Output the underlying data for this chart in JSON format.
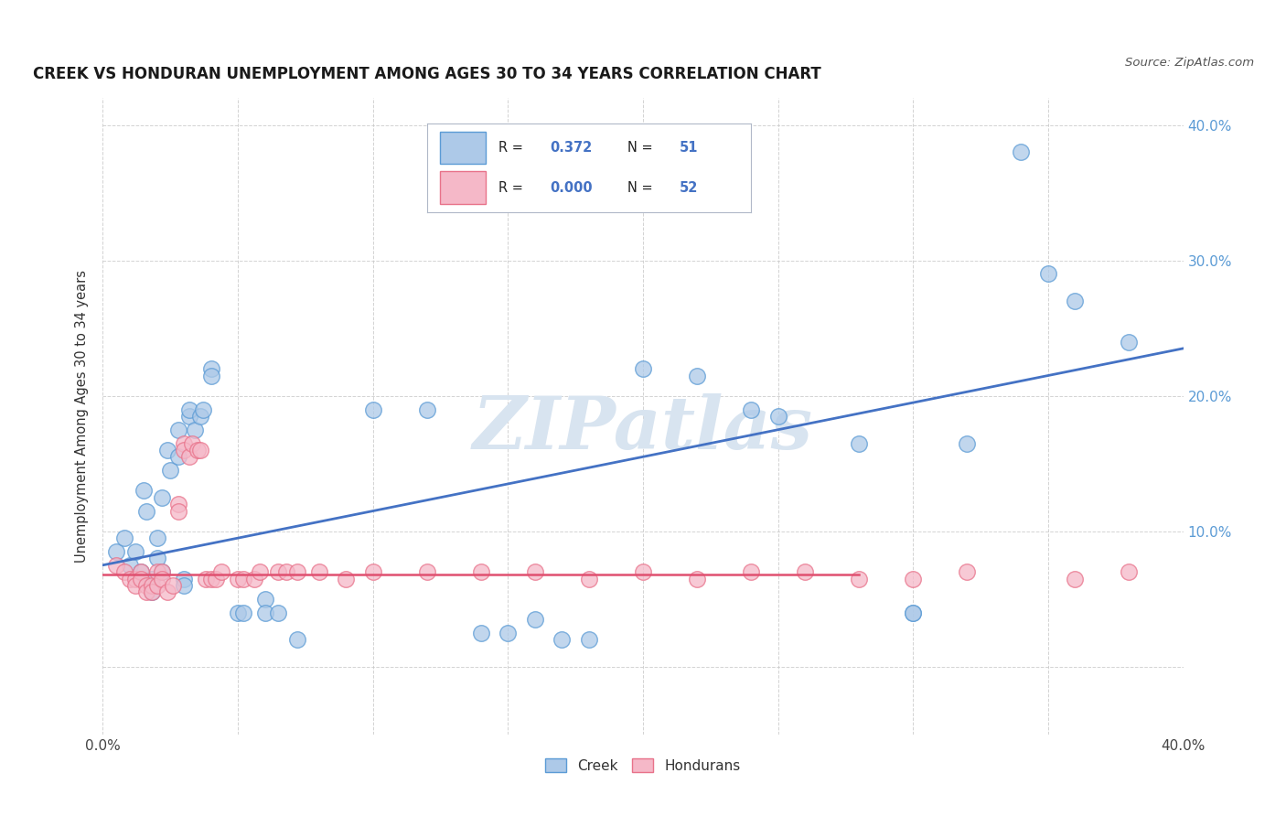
{
  "title": "CREEK VS HONDURAN UNEMPLOYMENT AMONG AGES 30 TO 34 YEARS CORRELATION CHART",
  "source": "Source: ZipAtlas.com",
  "ylabel": "Unemployment Among Ages 30 to 34 years",
  "xlim": [
    0.0,
    0.4
  ],
  "ylim": [
    -0.05,
    0.42
  ],
  "creek_R": "0.372",
  "creek_N": "51",
  "honduran_R": "0.000",
  "honduran_N": "52",
  "creek_color": "#adc9e8",
  "honduran_color": "#f5b8c8",
  "creek_edge_color": "#5b9bd5",
  "honduran_edge_color": "#e8728a",
  "creek_line_color": "#4472c4",
  "honduran_line_color": "#e05070",
  "background_color": "#ffffff",
  "grid_color": "#c8c8c8",
  "watermark": "ZIPatlas",
  "watermark_color": "#d8e4f0",
  "creek_points": [
    [
      0.005,
      0.085
    ],
    [
      0.008,
      0.095
    ],
    [
      0.01,
      0.075
    ],
    [
      0.012,
      0.085
    ],
    [
      0.014,
      0.07
    ],
    [
      0.015,
      0.13
    ],
    [
      0.016,
      0.115
    ],
    [
      0.018,
      0.065
    ],
    [
      0.018,
      0.055
    ],
    [
      0.02,
      0.095
    ],
    [
      0.02,
      0.08
    ],
    [
      0.022,
      0.125
    ],
    [
      0.022,
      0.07
    ],
    [
      0.024,
      0.16
    ],
    [
      0.025,
      0.145
    ],
    [
      0.028,
      0.155
    ],
    [
      0.028,
      0.175
    ],
    [
      0.03,
      0.065
    ],
    [
      0.03,
      0.06
    ],
    [
      0.032,
      0.185
    ],
    [
      0.032,
      0.19
    ],
    [
      0.034,
      0.175
    ],
    [
      0.036,
      0.185
    ],
    [
      0.037,
      0.19
    ],
    [
      0.04,
      0.22
    ],
    [
      0.04,
      0.215
    ],
    [
      0.05,
      0.04
    ],
    [
      0.052,
      0.04
    ],
    [
      0.06,
      0.05
    ],
    [
      0.06,
      0.04
    ],
    [
      0.065,
      0.04
    ],
    [
      0.072,
      0.02
    ],
    [
      0.1,
      0.19
    ],
    [
      0.12,
      0.19
    ],
    [
      0.14,
      0.025
    ],
    [
      0.15,
      0.025
    ],
    [
      0.16,
      0.035
    ],
    [
      0.17,
      0.02
    ],
    [
      0.18,
      0.02
    ],
    [
      0.2,
      0.22
    ],
    [
      0.22,
      0.215
    ],
    [
      0.24,
      0.19
    ],
    [
      0.25,
      0.185
    ],
    [
      0.28,
      0.165
    ],
    [
      0.3,
      0.04
    ],
    [
      0.3,
      0.04
    ],
    [
      0.32,
      0.165
    ],
    [
      0.34,
      0.38
    ],
    [
      0.35,
      0.29
    ],
    [
      0.36,
      0.27
    ],
    [
      0.38,
      0.24
    ]
  ],
  "honduran_points": [
    [
      0.005,
      0.075
    ],
    [
      0.008,
      0.07
    ],
    [
      0.01,
      0.065
    ],
    [
      0.012,
      0.065
    ],
    [
      0.012,
      0.06
    ],
    [
      0.014,
      0.07
    ],
    [
      0.014,
      0.065
    ],
    [
      0.016,
      0.06
    ],
    [
      0.016,
      0.055
    ],
    [
      0.018,
      0.06
    ],
    [
      0.018,
      0.055
    ],
    [
      0.02,
      0.07
    ],
    [
      0.02,
      0.06
    ],
    [
      0.022,
      0.07
    ],
    [
      0.022,
      0.065
    ],
    [
      0.024,
      0.055
    ],
    [
      0.026,
      0.06
    ],
    [
      0.028,
      0.12
    ],
    [
      0.028,
      0.115
    ],
    [
      0.03,
      0.165
    ],
    [
      0.03,
      0.16
    ],
    [
      0.032,
      0.155
    ],
    [
      0.033,
      0.165
    ],
    [
      0.035,
      0.16
    ],
    [
      0.036,
      0.16
    ],
    [
      0.038,
      0.065
    ],
    [
      0.04,
      0.065
    ],
    [
      0.042,
      0.065
    ],
    [
      0.044,
      0.07
    ],
    [
      0.05,
      0.065
    ],
    [
      0.052,
      0.065
    ],
    [
      0.056,
      0.065
    ],
    [
      0.058,
      0.07
    ],
    [
      0.065,
      0.07
    ],
    [
      0.068,
      0.07
    ],
    [
      0.072,
      0.07
    ],
    [
      0.08,
      0.07
    ],
    [
      0.09,
      0.065
    ],
    [
      0.1,
      0.07
    ],
    [
      0.12,
      0.07
    ],
    [
      0.14,
      0.07
    ],
    [
      0.16,
      0.07
    ],
    [
      0.18,
      0.065
    ],
    [
      0.2,
      0.07
    ],
    [
      0.22,
      0.065
    ],
    [
      0.24,
      0.07
    ],
    [
      0.26,
      0.07
    ],
    [
      0.28,
      0.065
    ],
    [
      0.3,
      0.065
    ],
    [
      0.32,
      0.07
    ],
    [
      0.36,
      0.065
    ],
    [
      0.38,
      0.07
    ]
  ],
  "legend_box_color": "#f0f4f8",
  "legend_border_color": "#b0c0d0"
}
